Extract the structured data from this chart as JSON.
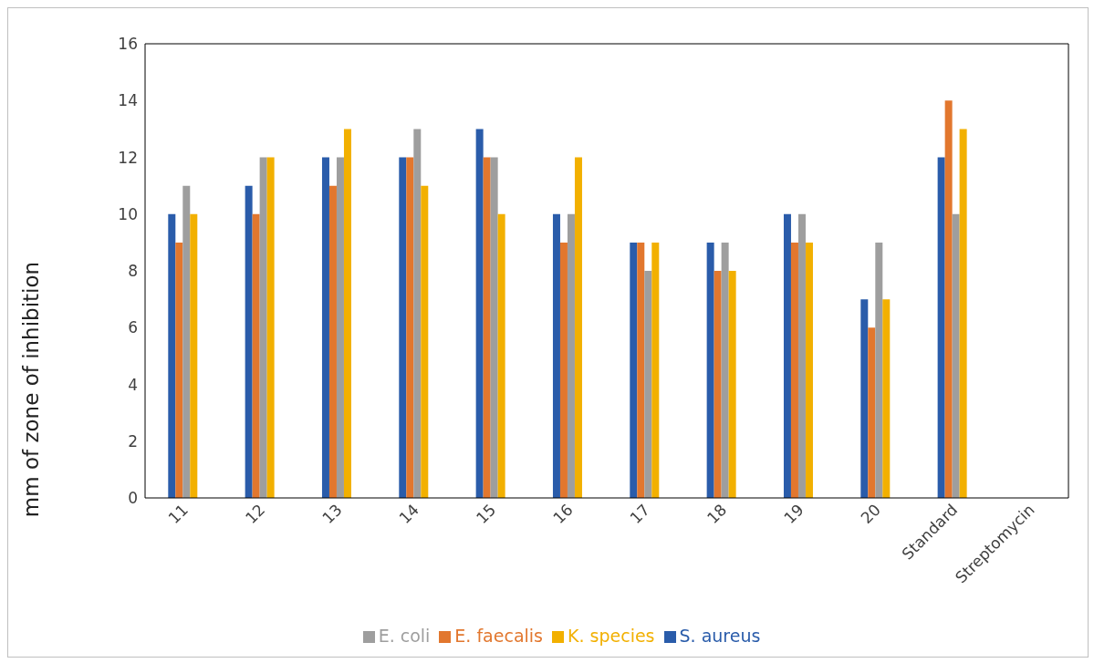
{
  "chart_data": {
    "type": "bar",
    "ylabel": "mm of zone of inhibition",
    "categories": [
      "11",
      "12",
      "13",
      "14",
      "15",
      "16",
      "17",
      "18",
      "19",
      "20",
      "Standard",
      "Streptomycin"
    ],
    "series": [
      {
        "name": "S. aureus",
        "color": "#2a5caa",
        "values": [
          10,
          11,
          12,
          12,
          13,
          10,
          9,
          9,
          10,
          7,
          12,
          null
        ]
      },
      {
        "name": "E. faecalis",
        "color": "#e2772e",
        "values": [
          9,
          10,
          11,
          12,
          12,
          9,
          9,
          8,
          9,
          6,
          14,
          null
        ]
      },
      {
        "name": "E. coli",
        "color": "#9e9e9e",
        "values": [
          11,
          12,
          12,
          13,
          12,
          10,
          8,
          9,
          10,
          9,
          10,
          null
        ]
      },
      {
        "name": "K. species",
        "color": "#f2b000",
        "values": [
          10,
          12,
          13,
          11,
          10,
          12,
          9,
          8,
          9,
          7,
          13,
          null
        ]
      }
    ],
    "ylim": [
      0,
      16
    ],
    "yticks": [
      0,
      2,
      4,
      6,
      8,
      10,
      12,
      14,
      16
    ],
    "grid": false,
    "legend": "bottom"
  }
}
